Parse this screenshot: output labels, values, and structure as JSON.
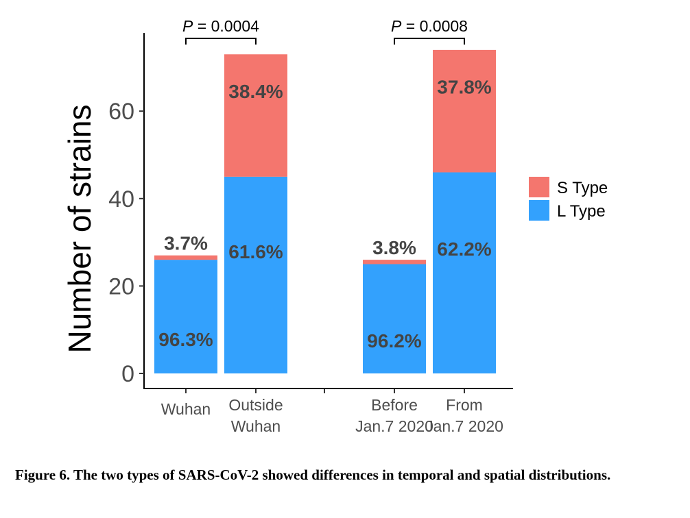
{
  "chart_data": {
    "type": "bar",
    "stacked": true,
    "ylabel": "Number of strains",
    "xlabel": "",
    "ylim": [
      0,
      75
    ],
    "yticks": [
      0,
      20,
      40,
      60
    ],
    "grid": false,
    "legend_position": "right",
    "categories": [
      {
        "label_lines": [
          "Wuhan"
        ]
      },
      {
        "label_lines": [
          "Outside",
          "Wuhan"
        ]
      },
      {
        "label_lines": [
          "Before",
          "Jan.7 2020"
        ]
      },
      {
        "label_lines": [
          "From",
          "Jan.7 2020"
        ]
      }
    ],
    "series": [
      {
        "name": "L Type",
        "color": "#33a1fd",
        "values": [
          26,
          45,
          25,
          46
        ],
        "labels": [
          "96.3%",
          "61.6%",
          "96.2%",
          "62.2%"
        ]
      },
      {
        "name": "S Type",
        "color": "#f4766e",
        "values": [
          1,
          28,
          1,
          28
        ],
        "labels": [
          "3.7%",
          "38.4%",
          "3.8%",
          "37.8%"
        ]
      }
    ],
    "comparisons": [
      {
        "between": [
          0,
          1
        ],
        "p_letter": "P",
        "p_text": " = 0.0004"
      },
      {
        "between": [
          2,
          3
        ],
        "p_letter": "P",
        "p_text": " = 0.0008"
      }
    ]
  },
  "caption": "Figure 6. The two types of SARS-CoV-2 showed differences in temporal and spatial distributions."
}
